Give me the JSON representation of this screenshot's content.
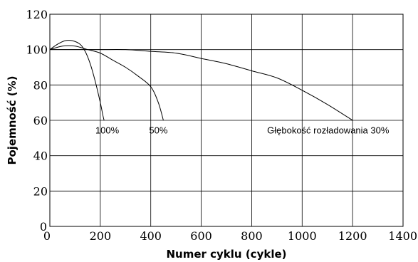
{
  "chart_data": {
    "type": "line",
    "xlabel": "Numer cyklu (cykle)",
    "ylabel": "Pojemność (%)",
    "xlim": [
      0,
      1400
    ],
    "ylim": [
      0,
      120
    ],
    "x_ticks": [
      0,
      200,
      400,
      600,
      800,
      1000,
      1200,
      1400
    ],
    "y_ticks": [
      0,
      20,
      40,
      60,
      80,
      100,
      120
    ],
    "grid": true,
    "series": [
      {
        "name": "100%",
        "points": [
          [
            0,
            100
          ],
          [
            30,
            103
          ],
          [
            60,
            105
          ],
          [
            90,
            105
          ],
          [
            120,
            103
          ],
          [
            140,
            99
          ],
          [
            160,
            92
          ],
          [
            180,
            82
          ],
          [
            200,
            70
          ],
          [
            210,
            63
          ],
          [
            215,
            60
          ]
        ]
      },
      {
        "name": "50%",
        "points": [
          [
            0,
            100
          ],
          [
            50,
            102
          ],
          [
            100,
            102
          ],
          [
            150,
            100
          ],
          [
            200,
            98
          ],
          [
            250,
            94
          ],
          [
            300,
            90
          ],
          [
            350,
            85
          ],
          [
            400,
            79
          ],
          [
            430,
            70
          ],
          [
            450,
            60
          ]
        ]
      },
      {
        "name": "Głębokość rozładowania 30%",
        "points": [
          [
            0,
            100
          ],
          [
            100,
            100
          ],
          [
            200,
            100
          ],
          [
            300,
            100
          ],
          [
            400,
            99
          ],
          [
            500,
            98
          ],
          [
            600,
            95
          ],
          [
            700,
            92
          ],
          [
            800,
            88
          ],
          [
            900,
            84
          ],
          [
            1000,
            77
          ],
          [
            1100,
            69
          ],
          [
            1200,
            60
          ]
        ]
      }
    ],
    "annotations": [
      {
        "text": "100%",
        "x": 220,
        "y": 57
      },
      {
        "text": "50%",
        "x": 450,
        "y": 57
      },
      {
        "text": "Głębokość rozładowania 30%",
        "x": 1200,
        "y": 57
      }
    ]
  }
}
